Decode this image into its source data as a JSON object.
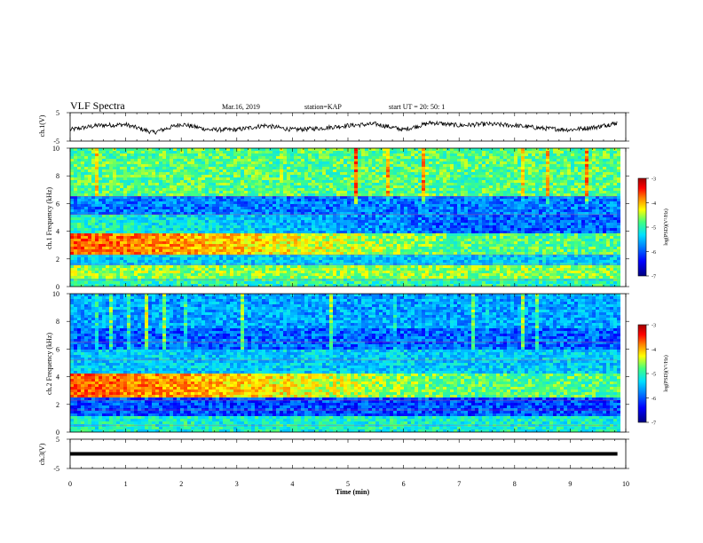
{
  "header": {
    "title": "VLF Spectra",
    "date": "Mar.16, 2019",
    "station": "station=KAP",
    "start": "start  UT  =   20: 50: 1"
  },
  "colorbar": {
    "label": "log(PSD)(V²/Hz)",
    "ticks": [
      "-3",
      "-4",
      "-5",
      "-6",
      "-7"
    ],
    "colors": [
      "#000080",
      "#0000ff",
      "#0080ff",
      "#00e0ff",
      "#40ff80",
      "#ffff00",
      "#ff8000",
      "#ff0000",
      "#a00000"
    ]
  },
  "chart_data": [
    {
      "type": "line",
      "name": "ch1-waveform",
      "ylabel": "ch.1(V)",
      "ylim": [
        -5,
        5
      ],
      "yticks": [
        "5",
        "-5"
      ],
      "xlim": [
        0,
        10
      ],
      "x": [
        0,
        0.5,
        1,
        1.5,
        2,
        2.5,
        3,
        3.5,
        4,
        4.5,
        5,
        5.5,
        6,
        6.5,
        7,
        7.5,
        8,
        8.5,
        9,
        9.5,
        9.85
      ],
      "values": [
        -1,
        0.5,
        0.8,
        -2,
        1,
        -1,
        -1,
        0.5,
        -1,
        -0.5,
        0.5,
        1,
        -1,
        1.5,
        0.5,
        1,
        0.5,
        -0.5,
        -1,
        0,
        1.5
      ]
    },
    {
      "type": "heatmap",
      "name": "ch1-spectrogram",
      "ylabel": "ch.1 Frequency (kHz)",
      "ylim": [
        0,
        10
      ],
      "yticks": [
        "0",
        "2",
        "4",
        "6",
        "8",
        "10"
      ],
      "xlim": [
        0,
        10
      ],
      "data_xmax": 9.85,
      "z_range": [
        -7,
        -3
      ],
      "bands": [
        {
          "f": [
            0,
            0.6
          ],
          "z": -5.2
        },
        {
          "f": [
            0.6,
            1.6
          ],
          "z": -4.8
        },
        {
          "f": [
            1.6,
            2.3
          ],
          "z": -5.6
        },
        {
          "f": [
            2.3,
            3.9
          ],
          "z_start": -3.8,
          "z_end": -5.0
        },
        {
          "f": [
            3.9,
            5.2
          ],
          "z_start": -5.2,
          "z_end": -6.1
        },
        {
          "f": [
            5.2,
            6.5
          ],
          "z": -6.0
        },
        {
          "f": [
            6.5,
            10
          ],
          "z": -5.0
        }
      ]
    },
    {
      "type": "heatmap",
      "name": "ch2-spectrogram",
      "ylabel": "ch.2 Frequency (kHz)",
      "ylim": [
        0,
        10
      ],
      "yticks": [
        "0",
        "2",
        "4",
        "6",
        "8",
        "10"
      ],
      "xlim": [
        0,
        10
      ],
      "data_xmax": 9.85,
      "z_range": [
        -7,
        -3
      ],
      "bands": [
        {
          "f": [
            0,
            1.2
          ],
          "z": -5.3
        },
        {
          "f": [
            1.2,
            2.5
          ],
          "z": -6.2
        },
        {
          "f": [
            2.5,
            4.2
          ],
          "z_start": -3.8,
          "z_end": -5.0
        },
        {
          "f": [
            4.2,
            6.0
          ],
          "z": -5.6
        },
        {
          "f": [
            6.0,
            7.5
          ],
          "z": -6.1
        },
        {
          "f": [
            7.5,
            10
          ],
          "z": -5.8
        }
      ]
    },
    {
      "type": "line",
      "name": "ch3-waveform",
      "ylabel": "ch.3(V)",
      "ylim": [
        -5,
        5
      ],
      "yticks": [
        "5",
        "-5"
      ],
      "xlim": [
        0,
        10
      ],
      "x": [
        0,
        9.85
      ],
      "values": [
        0,
        0
      ]
    }
  ],
  "xaxis": {
    "label": "Time  (min)",
    "ticks": [
      "0",
      "1",
      "2",
      "3",
      "4",
      "5",
      "6",
      "7",
      "8",
      "9",
      "10"
    ]
  }
}
